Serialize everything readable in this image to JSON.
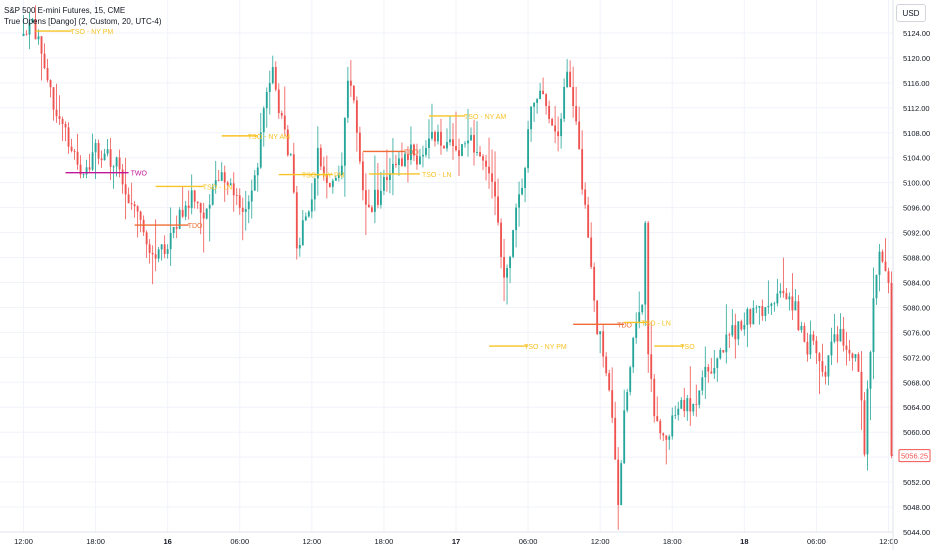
{
  "header": {
    "title": "S&P 500 E-mini Futures, 15, CME",
    "indicator": "True Opens [Dango] (2, Custom, 20, UTC-4)"
  },
  "currency_button": "USD",
  "colors": {
    "up": "#26a69a",
    "down": "#ef5350",
    "tso": "#f7c325",
    "tdo": "#ef6c34",
    "two": "#c0179a",
    "grid": "#f0f3fa",
    "axis_text": "#131722",
    "price_tag": "#ef5350"
  },
  "chart_data": {
    "type": "candlestick",
    "title": "S&P 500 E-mini Futures, 15, CME",
    "yaxis": {
      "range": [
        5044,
        5128
      ],
      "ticks": [
        "5124.00",
        "5120.00",
        "5116.00",
        "5112.00",
        "5108.00",
        "5104.00",
        "5100.00",
        "5096.00",
        "5092.00",
        "5088.00",
        "5084.00",
        "5080.00",
        "5076.00",
        "5072.00",
        "5068.00",
        "5064.00",
        "5060.00",
        "5056.00",
        "5052.00",
        "5048.00",
        "5044.00"
      ]
    },
    "xaxis": {
      "bar_count": 290,
      "ticks": [
        {
          "bar": 0,
          "label": "12:00",
          "bold": false
        },
        {
          "bar": 24,
          "label": "18:00",
          "bold": false
        },
        {
          "bar": 48,
          "label": "16",
          "bold": true
        },
        {
          "bar": 72,
          "label": "06:00",
          "bold": false
        },
        {
          "bar": 96,
          "label": "12:00",
          "bold": false
        },
        {
          "bar": 120,
          "label": "18:00",
          "bold": false
        },
        {
          "bar": 144,
          "label": "17",
          "bold": true
        },
        {
          "bar": 168,
          "label": "06:00",
          "bold": false
        },
        {
          "bar": 192,
          "label": "12:00",
          "bold": false
        },
        {
          "bar": 216,
          "label": "18:00",
          "bold": false
        },
        {
          "bar": 240,
          "label": "18",
          "bold": true
        },
        {
          "bar": 264,
          "label": "06:00",
          "bold": false
        },
        {
          "bar": 288,
          "label": "12:00",
          "bold": false
        }
      ]
    },
    "path": [
      [
        0,
        5124
      ],
      [
        3,
        5127
      ],
      [
        8,
        5115
      ],
      [
        14,
        5108
      ],
      [
        18,
        5102
      ],
      [
        20,
        5100
      ],
      [
        24,
        5106
      ],
      [
        28,
        5104
      ],
      [
        32,
        5102
      ],
      [
        36,
        5096
      ],
      [
        40,
        5092
      ],
      [
        44,
        5088
      ],
      [
        48,
        5090
      ],
      [
        52,
        5094
      ],
      [
        56,
        5098
      ],
      [
        60,
        5094
      ],
      [
        64,
        5099
      ],
      [
        68,
        5101
      ],
      [
        72,
        5096
      ],
      [
        76,
        5098
      ],
      [
        78,
        5102
      ],
      [
        80,
        5112
      ],
      [
        83,
        5117
      ],
      [
        86,
        5110
      ],
      [
        89,
        5104
      ],
      [
        91,
        5090
      ],
      [
        94,
        5094
      ],
      [
        98,
        5104
      ],
      [
        100,
        5102
      ],
      [
        103,
        5100
      ],
      [
        106,
        5104
      ],
      [
        108,
        5116
      ],
      [
        110,
        5113
      ],
      [
        114,
        5096
      ],
      [
        118,
        5098
      ],
      [
        121,
        5100
      ],
      [
        124,
        5103
      ],
      [
        127,
        5105
      ],
      [
        131,
        5104
      ],
      [
        135,
        5106
      ],
      [
        138,
        5108
      ],
      [
        141,
        5106
      ],
      [
        145,
        5105
      ],
      [
        149,
        5106
      ],
      [
        153,
        5104
      ],
      [
        156,
        5101
      ],
      [
        158,
        5094
      ],
      [
        160,
        5084
      ],
      [
        163,
        5092
      ],
      [
        166,
        5100
      ],
      [
        168,
        5108
      ],
      [
        170,
        5113
      ],
      [
        172,
        5116
      ],
      [
        175,
        5110
      ],
      [
        178,
        5108
      ],
      [
        181,
        5118
      ],
      [
        184,
        5109
      ],
      [
        186,
        5100
      ],
      [
        189,
        5085
      ],
      [
        191,
        5077
      ],
      [
        194,
        5070
      ],
      [
        196,
        5063
      ],
      [
        198,
        5049
      ],
      [
        200,
        5064
      ],
      [
        203,
        5074
      ],
      [
        206,
        5080
      ],
      [
        207,
        5093
      ],
      [
        208,
        5074
      ],
      [
        210,
        5062
      ],
      [
        213,
        5058
      ],
      [
        216,
        5062
      ],
      [
        220,
        5064
      ],
      [
        224,
        5066
      ],
      [
        228,
        5070
      ],
      [
        232,
        5074
      ],
      [
        236,
        5076
      ],
      [
        240,
        5078
      ],
      [
        244,
        5079
      ],
      [
        248,
        5080
      ],
      [
        252,
        5083
      ],
      [
        255,
        5082
      ],
      [
        258,
        5078
      ],
      [
        261,
        5074
      ],
      [
        264,
        5074
      ],
      [
        267,
        5070
      ],
      [
        270,
        5076
      ],
      [
        274,
        5074
      ],
      [
        278,
        5070
      ],
      [
        280,
        5058
      ],
      [
        283,
        5080
      ],
      [
        285,
        5090
      ],
      [
        287,
        5086
      ],
      [
        289,
        5082
      ],
      [
        290,
        5056
      ]
    ],
    "last_price": "5056.25",
    "levels": [
      {
        "label": "TSO - NY PM",
        "price": 5124.3,
        "from": 4,
        "to": 16,
        "color": "tso",
        "label_at": 15
      },
      {
        "label": "TWO",
        "price": 5101.6,
        "from": 14,
        "to": 35,
        "color": "two",
        "label_at": 35
      },
      {
        "label": "TSO - LN",
        "price": 5099.4,
        "from": 44,
        "to": 60,
        "color": "tso",
        "label_at": 59
      },
      {
        "label": "TDO",
        "price": 5093.2,
        "from": 37,
        "to": 55,
        "color": "tdo",
        "label_at": 54
      },
      {
        "label": "TSO - NY AM",
        "price": 5107.5,
        "from": 66,
        "to": 78,
        "color": "tso",
        "label_at": 74
      },
      {
        "label": "TSO - NY PM",
        "price": 5101.3,
        "from": 85,
        "to": 103,
        "color": "tso",
        "label_at": 92
      },
      {
        "label": "TDO",
        "price": 5105.0,
        "from": 113,
        "to": 127,
        "color": "tdo",
        "label_at": 126
      },
      {
        "label": "TSO - LN",
        "price": 5101.4,
        "from": 115,
        "to": 132,
        "color": "tso",
        "label_at": 132
      },
      {
        "label": "TSO - NY AM",
        "price": 5110.7,
        "from": 135,
        "to": 147,
        "color": "tso",
        "label_at": 146
      },
      {
        "label": "TSO - NY PM",
        "price": 5073.8,
        "from": 155,
        "to": 168,
        "color": "tso",
        "label_at": 166
      },
      {
        "label": "TDO",
        "price": 5077.3,
        "from": 183,
        "to": 200,
        "color": "tdo",
        "label_at": 197
      },
      {
        "label": "TSO - LN",
        "price": 5077.6,
        "from": 200,
        "to": 208,
        "color": "tso",
        "label_at": 205
      },
      {
        "label": "TSO",
        "price": 5073.8,
        "from": 210,
        "to": 220,
        "color": "tso",
        "label_at": 218
      }
    ]
  }
}
